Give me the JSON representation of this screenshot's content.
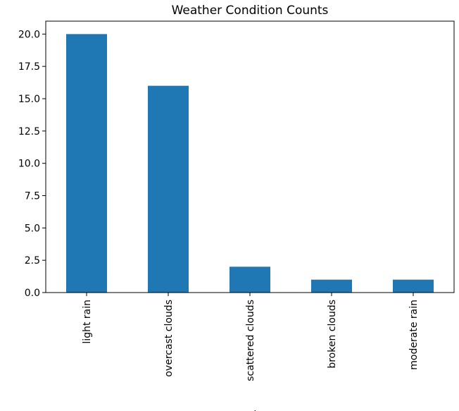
{
  "chart_data": {
    "type": "bar",
    "title": "Weather Condition Counts",
    "xlabel": "weather",
    "ylabel": "",
    "categories": [
      "light rain",
      "overcast clouds",
      "scattered clouds",
      "broken clouds",
      "moderate rain"
    ],
    "values": [
      20,
      16,
      2,
      1,
      1
    ],
    "ylim": [
      0,
      21
    ],
    "yticks": [
      "0.0",
      "2.5",
      "5.0",
      "7.5",
      "10.0",
      "12.5",
      "15.0",
      "17.5",
      "20.0"
    ],
    "ytick_values": [
      0,
      2.5,
      5,
      7.5,
      10,
      12.5,
      15,
      17.5,
      20
    ],
    "bar_color": "#1f77b4",
    "grid": false,
    "legend": "none"
  }
}
